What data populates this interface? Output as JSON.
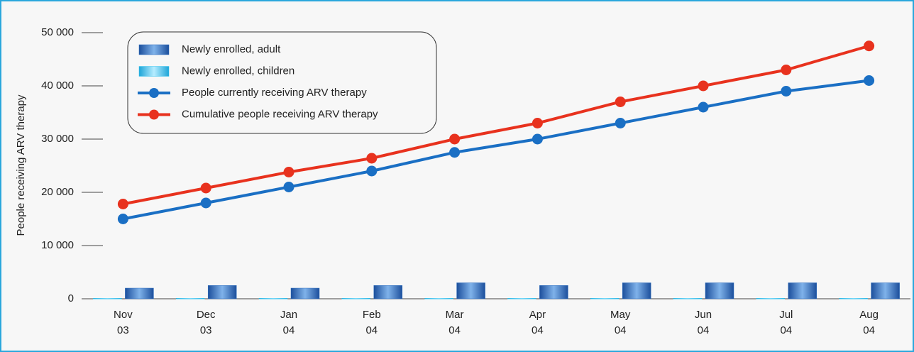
{
  "chart_data": {
    "type": "bar_line",
    "y_label": "People receiving ARV therapy",
    "categories": [
      "Nov\n03",
      "Dec\n03",
      "Jan\n04",
      "Feb\n04",
      "Mar\n04",
      "Apr\n04",
      "May\n04",
      "Jun\n04",
      "Jul\n04",
      "Aug\n04"
    ],
    "series": [
      {
        "name": "Newly enrolled, adult",
        "kind": "bar",
        "color": "#2f6fc0",
        "values": [
          2000,
          2500,
          2000,
          2500,
          3000,
          2500,
          3000,
          3000,
          3000,
          3000
        ]
      },
      {
        "name": "Newly enrolled, children",
        "kind": "bar",
        "color": "#35c3f0",
        "values": [
          100,
          100,
          100,
          100,
          100,
          100,
          100,
          100,
          100,
          100
        ]
      },
      {
        "name": "People currently receiving ARV therapy",
        "kind": "line",
        "color": "#1a6fc4",
        "values": [
          15000,
          18000,
          21000,
          24000,
          27500,
          30000,
          33000,
          36000,
          39000,
          41000
        ]
      },
      {
        "name": "Cumulative people receiving ARV therapy",
        "kind": "line",
        "color": "#e8321e",
        "values": [
          17800,
          20800,
          23800,
          26400,
          30000,
          33000,
          37000,
          40000,
          43000,
          47500
        ]
      }
    ],
    "ylim": [
      0,
      50000
    ],
    "yticks": [
      {
        "value": 0,
        "label": "0"
      },
      {
        "value": 10000,
        "label": "10 000"
      },
      {
        "value": 20000,
        "label": "20 000"
      },
      {
        "value": 30000,
        "label": "30 000"
      },
      {
        "value": 40000,
        "label": "40 000"
      },
      {
        "value": 50000,
        "label": "50 000"
      }
    ],
    "grid": false
  }
}
